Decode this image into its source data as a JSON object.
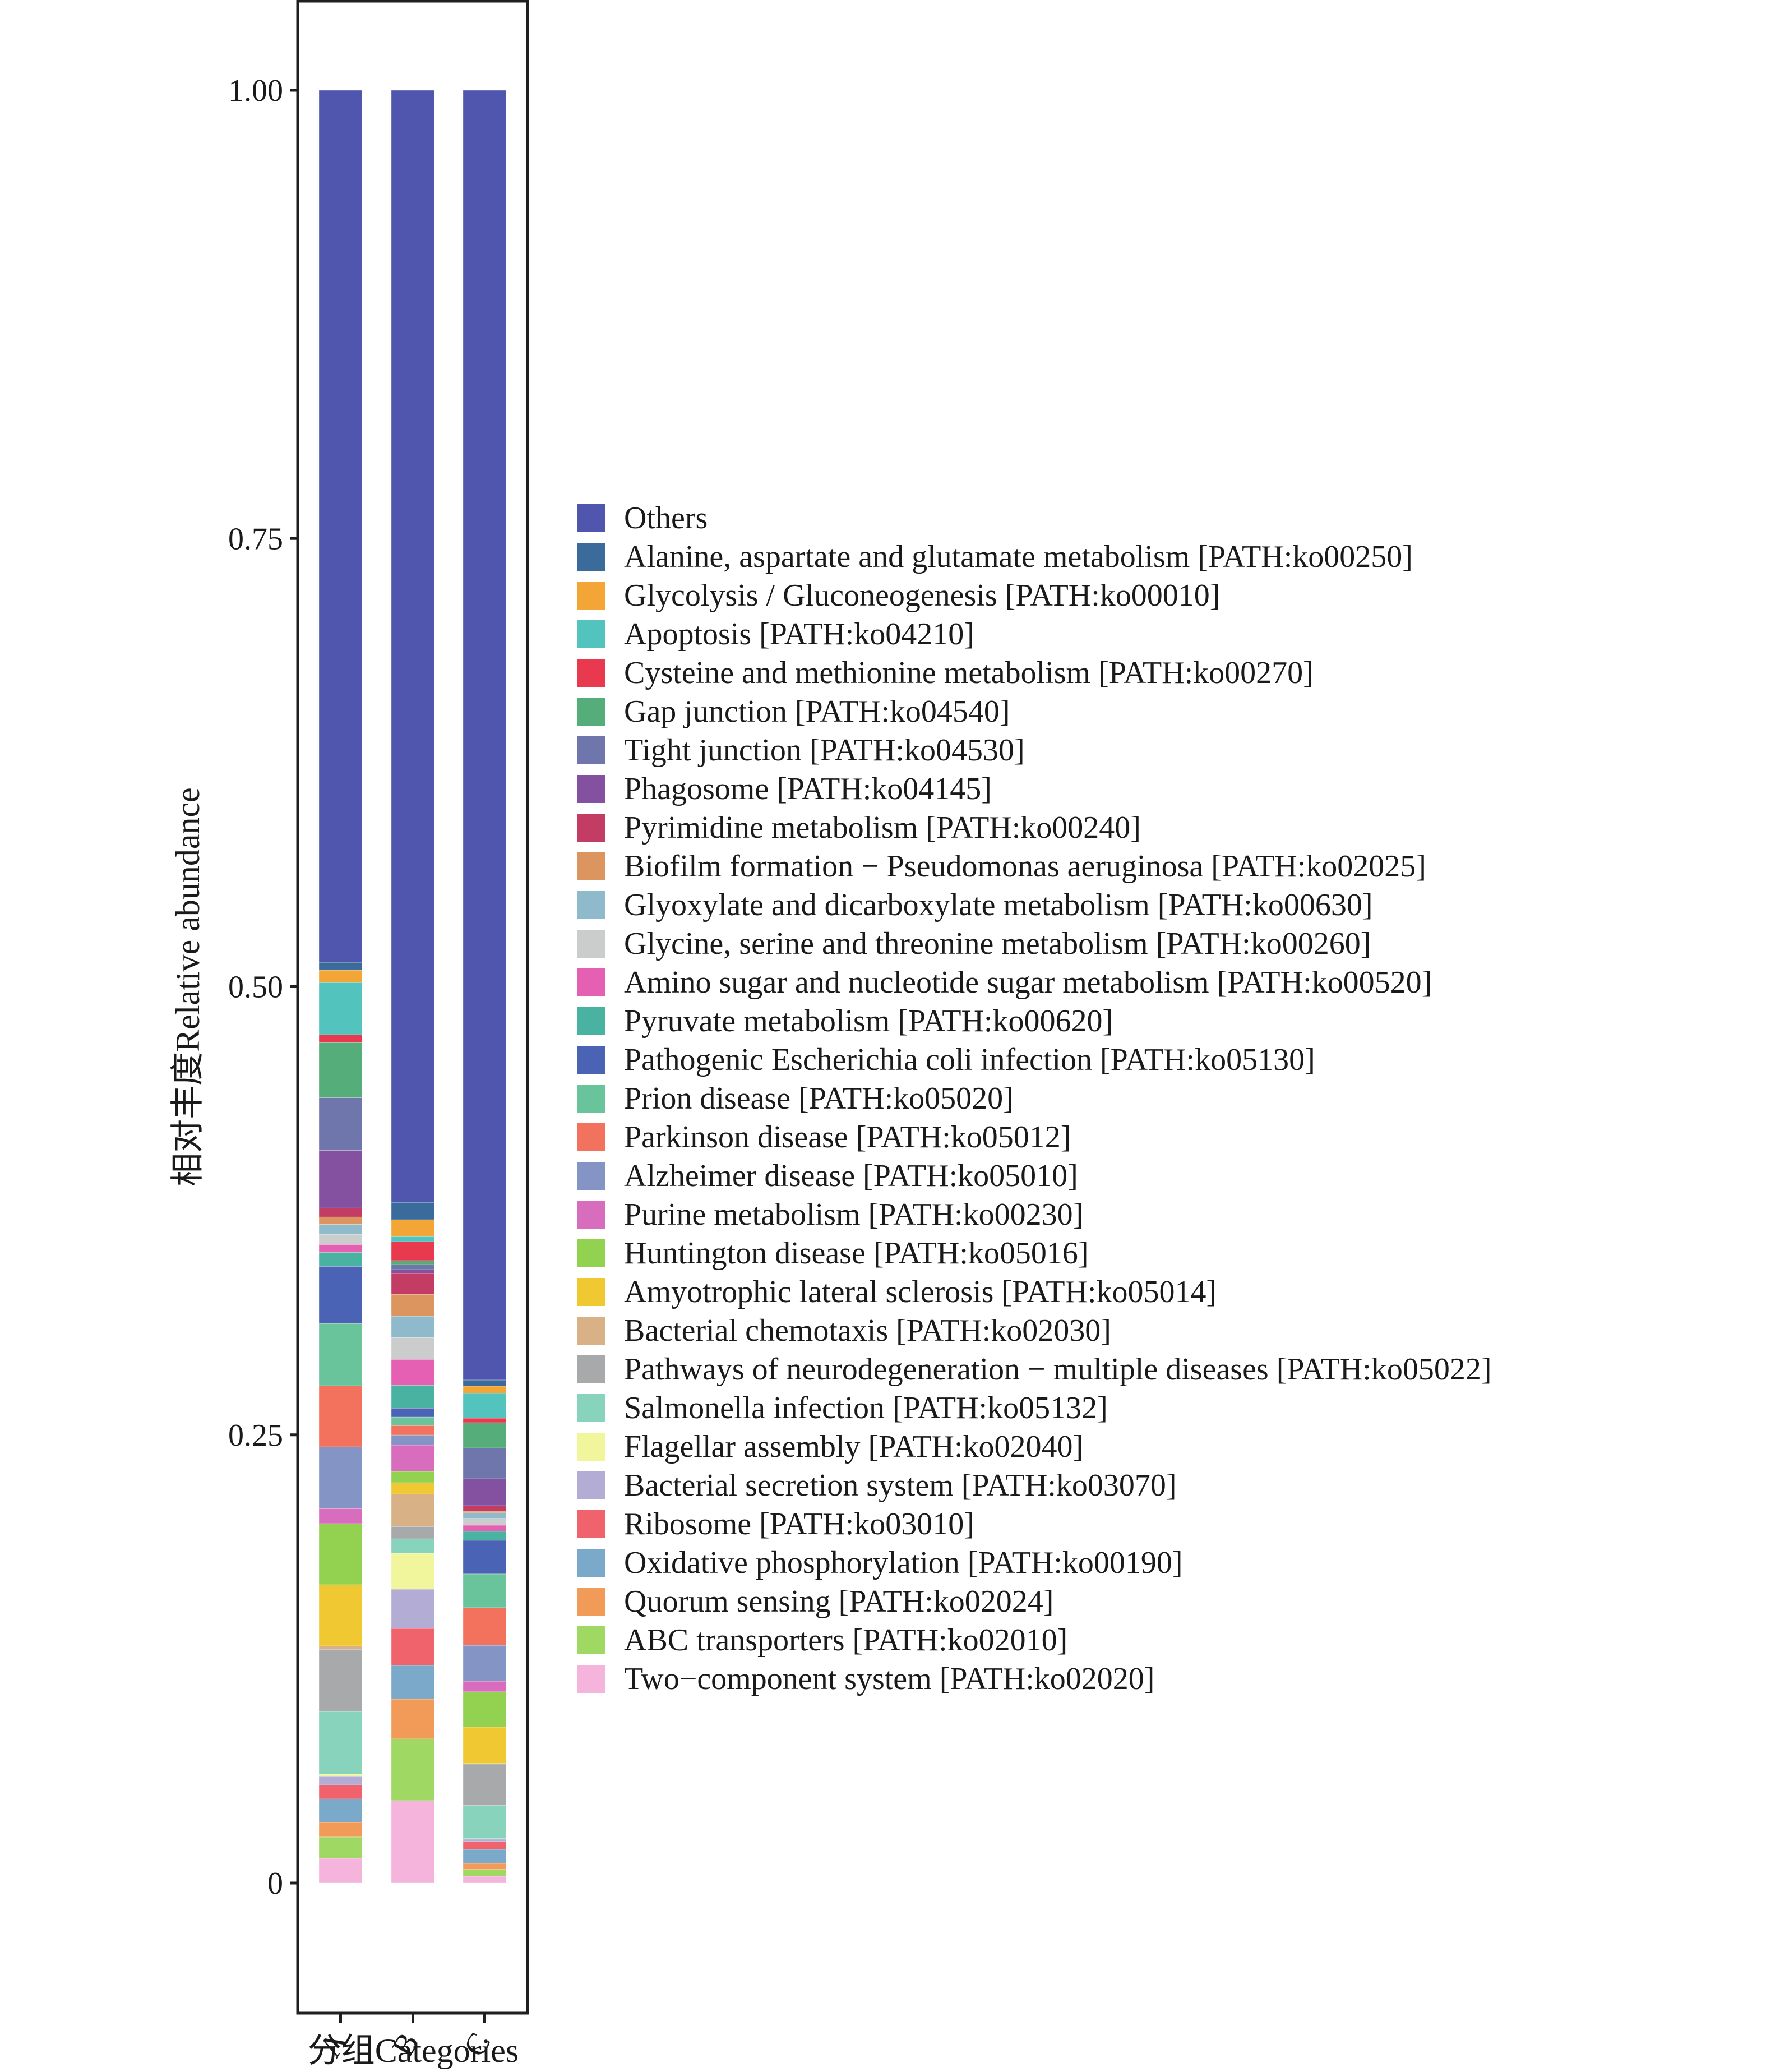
{
  "chart_data": {
    "type": "bar",
    "stacked": true,
    "title": "",
    "xlabel": "分组Categories",
    "ylabel": "相对丰度Relative abundance",
    "ylim": [
      0,
      1
    ],
    "yticks": [
      0,
      0.25,
      0.5,
      0.75,
      1.0
    ],
    "ytick_labels": [
      "0",
      "0.25",
      "0.50",
      "0.75",
      "1.00"
    ],
    "categories": [
      "A",
      "B",
      "C"
    ],
    "grid": false,
    "legend_position": "right",
    "series": [
      {
        "name": "Others",
        "color": "#5055ad",
        "values": [
          0.4864,
          0.6203,
          0.7194
        ]
      },
      {
        "name": "Alanine, aspartate and glutamate metabolism [PATH:ko00250]",
        "color": "#3a6b9a",
        "values": [
          0.0044,
          0.0097,
          0.0034
        ]
      },
      {
        "name": "Glycolysis / Gluconeogenesis [PATH:ko00010]",
        "color": "#f3a535",
        "values": [
          0.0069,
          0.0094,
          0.0041
        ]
      },
      {
        "name": "Apoptosis [PATH:ko04210]",
        "color": "#52c4bd",
        "values": [
          0.0291,
          0.0028,
          0.0138
        ]
      },
      {
        "name": "Cysteine and methionine metabolism [PATH:ko00270]",
        "color": "#e8394f",
        "values": [
          0.0044,
          0.0106,
          0.0025
        ]
      },
      {
        "name": "Gap junction [PATH:ko04540]",
        "color": "#55ad79",
        "values": [
          0.0307,
          0.0022,
          0.0141
        ]
      },
      {
        "name": "Tight junction [PATH:ko04530]",
        "color": "#6e76ab",
        "values": [
          0.0294,
          0.0028,
          0.0172
        ]
      },
      {
        "name": "Phagosome [PATH:ko04145]",
        "color": "#8451a1",
        "values": [
          0.0322,
          0.0022,
          0.015
        ]
      },
      {
        "name": "Pyrimidine metabolism [PATH:ko00240]",
        "color": "#c23c63",
        "values": [
          0.005,
          0.0116,
          0.0031
        ]
      },
      {
        "name": "Biofilm formation − Pseudomonas aeruginosa [PATH:ko02025]",
        "color": "#dd955f",
        "values": [
          0.0041,
          0.0122,
          0.0009
        ]
      },
      {
        "name": "Glyoxylate and dicarboxylate metabolism [PATH:ko00630]",
        "color": "#8fbacc",
        "values": [
          0.0056,
          0.0119,
          0.0031
        ]
      },
      {
        "name": "Glycine, serine and threonine metabolism [PATH:ko00260]",
        "color": "#cbcccc",
        "values": [
          0.0056,
          0.0122,
          0.0038
        ]
      },
      {
        "name": "Amino sugar and nucleotide sugar metabolism [PATH:ko00520]",
        "color": "#e55fb2",
        "values": [
          0.0044,
          0.0144,
          0.0034
        ]
      },
      {
        "name": "Pyruvate metabolism [PATH:ko00620]",
        "color": "#4ab2a1",
        "values": [
          0.0078,
          0.0128,
          0.005
        ]
      },
      {
        "name": "Pathogenic Escherichia coli infection [PATH:ko05130]",
        "color": "#4a63b5",
        "values": [
          0.0319,
          0.005,
          0.0188
        ]
      },
      {
        "name": "Prion disease [PATH:ko05020]",
        "color": "#69c49b",
        "values": [
          0.0347,
          0.0047,
          0.0188
        ]
      },
      {
        "name": "Parkinson disease [PATH:ko05012]",
        "color": "#f3725d",
        "values": [
          0.0341,
          0.0053,
          0.021
        ]
      },
      {
        "name": "Alzheimer disease [PATH:ko05010]",
        "color": "#8394c5",
        "values": [
          0.0344,
          0.0056,
          0.02
        ]
      },
      {
        "name": "Purine metabolism [PATH:ko00230]",
        "color": "#d86dbe",
        "values": [
          0.0084,
          0.0147,
          0.0059
        ]
      },
      {
        "name": "Huntington disease [PATH:ko05016]",
        "color": "#92d250",
        "values": [
          0.0341,
          0.0063,
          0.0197
        ]
      },
      {
        "name": "Amyotrophic lateral sclerosis [PATH:ko05014]",
        "color": "#f0c832",
        "values": [
          0.0341,
          0.0063,
          0.0203
        ]
      },
      {
        "name": "Bacterial chemotaxis [PATH:ko02030]",
        "color": "#d8b286",
        "values": [
          0.0019,
          0.0181,
          0.0003
        ]
      },
      {
        "name": "Pathways of neurodegeneration − multiple diseases [PATH:ko05022]",
        "color": "#a8a9ab",
        "values": [
          0.0347,
          0.0069,
          0.0231
        ]
      },
      {
        "name": "Salmonella infection [PATH:ko05132]",
        "color": "#87d3bb",
        "values": [
          0.035,
          0.0081,
          0.0185
        ]
      },
      {
        "name": "Flagellar assembly [PATH:ko02040]",
        "color": "#f1f59c",
        "values": [
          0.0013,
          0.02,
          0.0003
        ]
      },
      {
        "name": "Bacterial secretion system [PATH:ko03070]",
        "color": "#b3acd5",
        "values": [
          0.0047,
          0.0219,
          0.0013
        ]
      },
      {
        "name": "Ribosome [PATH:ko03010]",
        "color": "#f0636c",
        "values": [
          0.0078,
          0.0206,
          0.0044
        ]
      },
      {
        "name": "Oxidative phosphorylation [PATH:ko00190]",
        "color": "#7ba9c9",
        "values": [
          0.0131,
          0.0188,
          0.0078
        ]
      },
      {
        "name": "Quorum sensing [PATH:ko02024]",
        "color": "#f29b58",
        "values": [
          0.0081,
          0.0222,
          0.0034
        ]
      },
      {
        "name": "ABC transporters [PATH:ko02010]",
        "color": "#9fd862",
        "values": [
          0.0119,
          0.0344,
          0.0038
        ]
      },
      {
        "name": "Two−component system [PATH:ko02020]",
        "color": "#f5b4dc",
        "values": [
          0.0138,
          0.046,
          0.0038
        ]
      }
    ]
  }
}
